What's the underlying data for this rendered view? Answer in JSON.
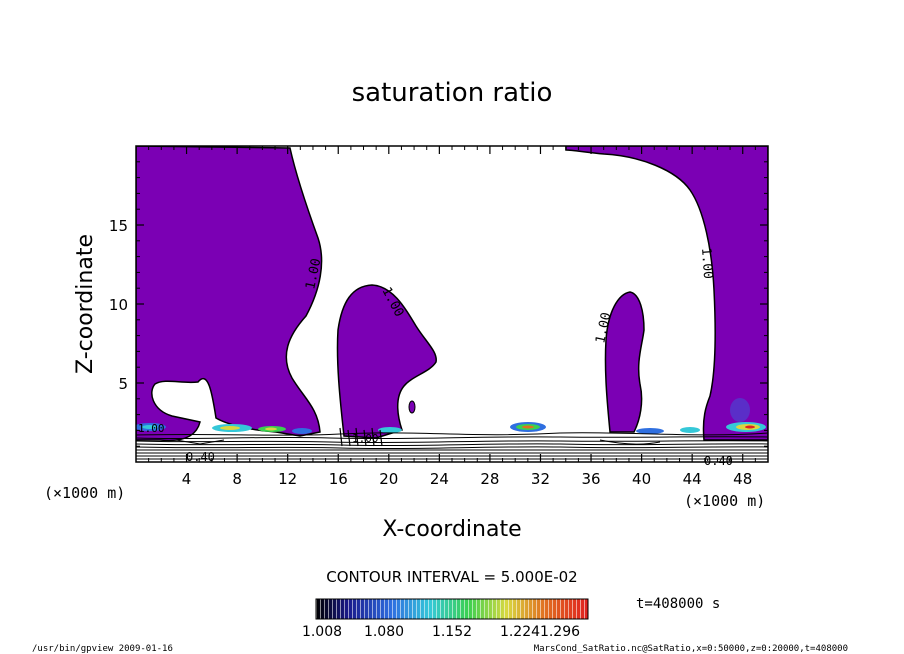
{
  "chart_data": {
    "type": "contour",
    "title": "saturation ratio",
    "xlabel": "X-coordinate",
    "ylabel": "Z-coordinate",
    "x_unit_left": "(×1000 m)",
    "x_unit_right": "(×1000 m)",
    "xlim": [
      0,
      50
    ],
    "ylim": [
      0,
      20
    ],
    "x_ticks": [
      "4",
      "8",
      "12",
      "16",
      "20",
      "24",
      "28",
      "32",
      "36",
      "40",
      "44",
      "48"
    ],
    "y_ticks": [
      "5",
      "10",
      "15"
    ],
    "contour_labels": [
      "1.00",
      "1.00",
      "1.00",
      "1.00",
      "1.00",
      "1.00",
      "0.40",
      "0.40"
    ],
    "contour_interval_text": "CONTOUR INTERVAL = 5.000E-02",
    "colorbar": {
      "tick_labels": [
        "1.008",
        "1.080",
        "1.152",
        "1.224",
        "1.296"
      ],
      "range": [
        1.008,
        1.296
      ]
    },
    "time_label": "t=408000 s",
    "fill_color": "#7b00b4"
  },
  "footer": {
    "left": "/usr/bin/gpview  2009-01-16",
    "right": "MarsCond_SatRatio.nc@SatRatio,x=0:50000,z=0:20000,t=408000"
  }
}
